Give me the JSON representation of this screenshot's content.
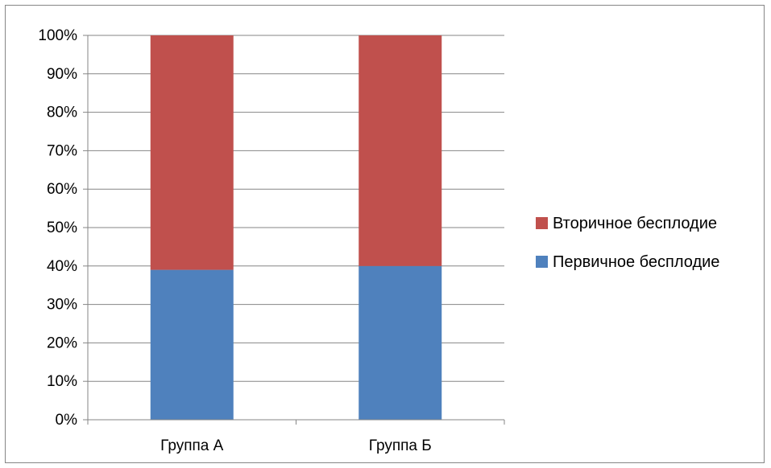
{
  "chart_data": {
    "type": "bar",
    "stacked": true,
    "percent_stacked": true,
    "categories": [
      "Группа А",
      "Группа Б"
    ],
    "series": [
      {
        "name": "Первичное бесплодие",
        "values": [
          39,
          40
        ],
        "color": "#4f81bd"
      },
      {
        "name": "Вторичное бесплодие",
        "values": [
          61,
          60
        ],
        "color": "#c0504d"
      }
    ],
    "ylim": [
      0,
      100
    ],
    "yticks": [
      "0%",
      "10%",
      "20%",
      "30%",
      "40%",
      "50%",
      "60%",
      "70%",
      "80%",
      "90%",
      "100%"
    ],
    "grid": true,
    "legend_position": "right",
    "legend_order": [
      "Вторичное бесплодие",
      "Первичное бесплодие"
    ]
  }
}
